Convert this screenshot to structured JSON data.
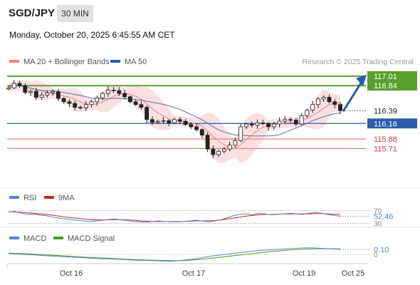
{
  "header": {
    "symbol": "SGD/JPY",
    "timeframe": "30 MIN",
    "datetime": "Monday, October 20, 2025 6:45:55 AM CET"
  },
  "legend": {
    "ma20_bb": "MA 20 + Bollinger Bands",
    "ma50": "MA 50",
    "credit": "Research © 2025 Trading Central"
  },
  "colors": {
    "candle": "#222222",
    "bollinger_fill": "#fadadd",
    "ma20": "#f08080",
    "ma50": "#5a6fa8",
    "resistance": "#5aa02c",
    "support": "#f08080",
    "pivot": "#2a5caa",
    "arrow": "#2a5caa",
    "rsi": "#5b7fd1",
    "rsi_ma": "#cc2222",
    "macd": "#5b7fd1",
    "macd_signal": "#4f9a1e"
  },
  "chart_data": [
    {
      "type": "candlestick",
      "title": "SGD/JPY",
      "x_ticks": [
        "Oct 16",
        "Oct 17",
        "Oct 19",
        "Oct 25"
      ],
      "ylim": [
        115.1,
        117.15
      ],
      "levels": {
        "resistance": [
          117.01,
          116.84
        ],
        "last_price": 116.39,
        "pivot": 116.16,
        "support": [
          115.88,
          115.71
        ]
      },
      "close_series": [
        116.8,
        116.88,
        116.84,
        116.72,
        116.74,
        116.63,
        116.67,
        116.71,
        116.73,
        116.61,
        116.55,
        116.52,
        116.45,
        116.44,
        116.5,
        116.55,
        116.62,
        116.7,
        116.76,
        116.75,
        116.7,
        116.64,
        116.55,
        116.5,
        116.45,
        116.23,
        116.18,
        116.2,
        116.21,
        116.17,
        116.23,
        116.2,
        116.14,
        116.1,
        116.05,
        115.95,
        115.7,
        115.6,
        115.66,
        115.7,
        115.77,
        115.85,
        116.1,
        116.15,
        116.13,
        116.17,
        116.16,
        116.1,
        116.15,
        116.2,
        116.23,
        116.22,
        116.15,
        116.3,
        116.4,
        116.5,
        116.6,
        116.63,
        116.55,
        116.5,
        116.39
      ]
    },
    {
      "type": "line",
      "title": "RSI",
      "series": [
        {
          "name": "RSI"
        },
        {
          "name": "9MA"
        }
      ],
      "y_ticks": [
        70,
        30
      ],
      "last_value": 52.46,
      "rsi_values": [
        65,
        68,
        62,
        58,
        60,
        56,
        54,
        50,
        47,
        44,
        42,
        40,
        38,
        36,
        38,
        40,
        42,
        44,
        41,
        39,
        36,
        35,
        34,
        36,
        38,
        36,
        35,
        35,
        36,
        38,
        40,
        37,
        35,
        38,
        42,
        48,
        55,
        58,
        60,
        57,
        62,
        60,
        57,
        58,
        60,
        62,
        60,
        58,
        62,
        64,
        62,
        58,
        55,
        52.46
      ],
      "ma_values": [
        66,
        66,
        65,
        63,
        62,
        60,
        58,
        56,
        53,
        50,
        48,
        46,
        44,
        42,
        41,
        41,
        41,
        42,
        42,
        41,
        40,
        38,
        37,
        36,
        36,
        36,
        36,
        36,
        36,
        37,
        38,
        38,
        38,
        39,
        41,
        44,
        47,
        50,
        53,
        55,
        57,
        58,
        58,
        59,
        60,
        60,
        60,
        60,
        60,
        61,
        61,
        60,
        59,
        58
      ]
    },
    {
      "type": "line",
      "title": "MACD",
      "series": [
        {
          "name": "MACD"
        },
        {
          "name": "MACD Signal"
        }
      ],
      "y_ticks": [
        0
      ],
      "last_value": 0.1,
      "macd_values": [
        0.02,
        0.01,
        0.0,
        -0.01,
        -0.02,
        -0.03,
        -0.04,
        -0.05,
        -0.06,
        -0.07,
        -0.08,
        -0.085,
        -0.09,
        -0.1,
        -0.11,
        -0.115,
        -0.12,
        -0.125,
        -0.13,
        -0.12,
        -0.1,
        -0.08,
        -0.05,
        -0.02,
        0.0,
        0.02,
        0.04,
        0.06,
        0.08,
        0.09,
        0.1,
        0.11,
        0.12,
        0.13,
        0.13,
        0.12,
        0.11,
        0.1
      ],
      "signal_values": [
        0.03,
        0.02,
        0.015,
        0.005,
        -0.005,
        -0.015,
        -0.025,
        -0.035,
        -0.045,
        -0.055,
        -0.065,
        -0.072,
        -0.08,
        -0.09,
        -0.1,
        -0.105,
        -0.11,
        -0.115,
        -0.12,
        -0.12,
        -0.115,
        -0.1,
        -0.085,
        -0.065,
        -0.045,
        -0.025,
        -0.005,
        0.015,
        0.035,
        0.055,
        0.07,
        0.085,
        0.095,
        0.105,
        0.112,
        0.115,
        0.113,
        0.11
      ]
    }
  ]
}
